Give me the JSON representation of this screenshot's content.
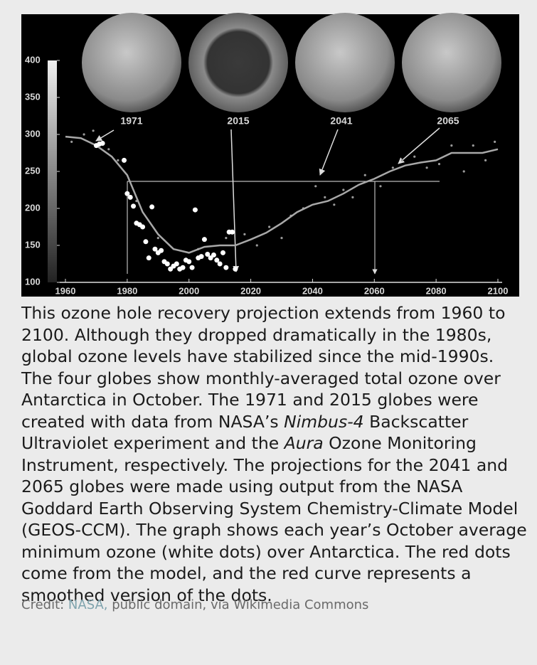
{
  "chart_data": {
    "type": "scatter",
    "annotations": [
      "1971",
      "2015",
      "2041",
      "2065"
    ],
    "xlim": [
      1960,
      2100
    ],
    "xticks": [
      1960,
      1980,
      2000,
      2020,
      2040,
      2060,
      2080,
      2100
    ],
    "ylim": [
      100,
      400
    ],
    "yticks": [
      100,
      150,
      200,
      250,
      300,
      350,
      400
    ],
    "series": [
      {
        "type": "scatter",
        "color": "#ffffff",
        "x": [
          1970,
          1971,
          1972,
          1979,
          1980,
          1981,
          1982,
          1983,
          1984,
          1985,
          1986,
          1987,
          1988,
          1989,
          1990,
          1991,
          1992,
          1993,
          1994,
          1995,
          1996,
          1997,
          1998,
          1999,
          2000,
          2001,
          2002,
          2003,
          2004,
          2005,
          2006,
          2007,
          2008,
          2009,
          2010,
          2011,
          2012,
          2013,
          2014,
          2015
        ],
        "values": [
          285,
          287,
          288,
          265,
          220,
          215,
          203,
          180,
          178,
          175,
          155,
          133,
          202,
          145,
          140,
          143,
          128,
          125,
          118,
          122,
          125,
          118,
          120,
          130,
          128,
          120,
          198,
          133,
          135,
          158,
          138,
          133,
          137,
          130,
          125,
          140,
          120,
          168,
          168,
          118
        ]
      },
      {
        "type": "scatter",
        "color": "#9a9a9a",
        "x": [
          1962,
          1966,
          1969,
          1974,
          1977,
          1983,
          1990,
          2003,
          2012,
          2018,
          2022,
          2026,
          2030,
          2033,
          2037,
          2041,
          2044,
          2047,
          2050,
          2053,
          2057,
          2062,
          2066,
          2069,
          2073,
          2077,
          2081,
          2085,
          2089,
          2092,
          2096,
          2099
        ],
        "values": [
          290,
          300,
          305,
          280,
          265,
          210,
          160,
          145,
          160,
          165,
          150,
          175,
          160,
          190,
          200,
          230,
          215,
          205,
          225,
          215,
          245,
          230,
          255,
          265,
          270,
          255,
          260,
          285,
          250,
          285,
          265,
          290
        ]
      },
      {
        "type": "line",
        "color": "#a8a8a8",
        "x": [
          1960,
          1965,
          1970,
          1975,
          1980,
          1985,
          1990,
          1995,
          2000,
          2005,
          2010,
          2015,
          2020,
          2025,
          2030,
          2035,
          2040,
          2045,
          2050,
          2055,
          2060,
          2065,
          2070,
          2075,
          2080,
          2085,
          2090,
          2095,
          2100
        ],
        "values": [
          297,
          295,
          285,
          270,
          245,
          195,
          165,
          145,
          140,
          148,
          150,
          150,
          158,
          167,
          180,
          195,
          205,
          210,
          220,
          232,
          240,
          250,
          258,
          262,
          265,
          275,
          275,
          275,
          280
        ]
      }
    ]
  },
  "caption": {
    "parts": [
      "This ozone hole recovery projection extends from 1960 to 2100. Although they dropped dramatically in the 1980s, global ozone levels have stabilized since the mid-1990s. The four globes show monthly-averaged total ozone over Antarctica in October. The 1971 and 2015 globes were created with data from NASA’s ",
      "Nimbus-4",
      " Backscatter Ultraviolet experiment and the ",
      "Aura",
      " Ozone Monitoring Instrument, respectively. The projections for the 2041 and 2065 globes were made using output from the NASA Goddard Earth Observing System Chemistry-Climate Model (GEOS-CCM). The graph shows each year’s October average minimum ozone (white dots) over Antarctica. The red dots come from the model, and the red curve represents a smoothed version of the dots."
    ]
  },
  "credit": {
    "prefix": "Credit: ",
    "link": "NASA,",
    "suffix": " public domain, via Wikimedia Commons"
  }
}
